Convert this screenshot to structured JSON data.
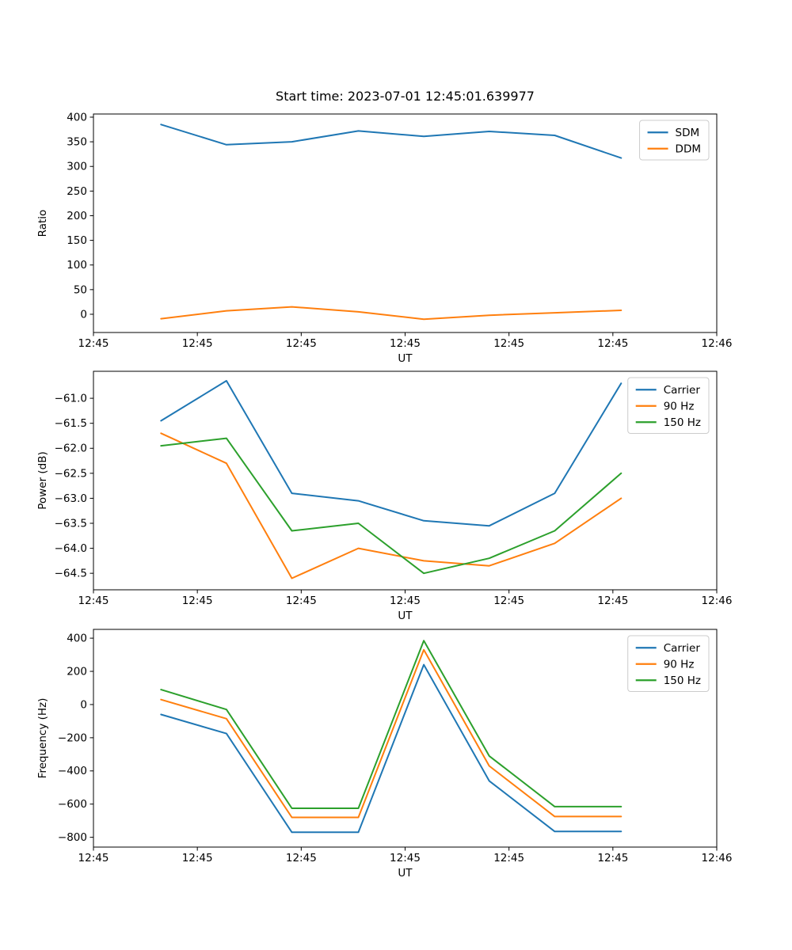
{
  "figure": {
    "title": "Start time: 2023-07-01 12:45:01.639977",
    "background": "#ffffff"
  },
  "colors": {
    "blue": "#1f77b4",
    "orange": "#ff7f0e",
    "green": "#2ca02c",
    "legend_border": "#cccccc",
    "axes_edge": "#000000"
  },
  "chart_data": [
    {
      "type": "line",
      "xlabel": "UT",
      "ylabel": "Ratio",
      "xlim_seconds": [
        0,
        60
      ],
      "xtick_seconds": [
        0,
        10,
        20,
        30,
        40,
        50,
        60
      ],
      "xtick_labels": [
        "12:45",
        "12:45",
        "12:45",
        "12:45",
        "12:45",
        "12:45",
        "12:46"
      ],
      "ylim": [
        -37,
        406.4
      ],
      "ytick_values": [
        400,
        350,
        300,
        250,
        200,
        150,
        100,
        50,
        0
      ],
      "ytick_labels": [
        "400",
        "350",
        "300",
        "250",
        "200",
        "150",
        "100",
        "50",
        "0"
      ],
      "grid": false,
      "legend_position": "upper right",
      "x_seconds": [
        6.5,
        12.8,
        19.1,
        25.5,
        31.8,
        38.1,
        44.4,
        50.8
      ],
      "series": [
        {
          "name": "SDM",
          "color": "#1f77b4",
          "values": [
            385,
            344,
            350,
            372,
            361,
            371,
            363,
            317
          ]
        },
        {
          "name": "DDM",
          "color": "#ff7f0e",
          "values": [
            -9,
            7,
            15,
            5,
            -10,
            -2,
            3,
            8
          ]
        }
      ]
    },
    {
      "type": "line",
      "xlabel": "UT",
      "ylabel": "Power (dB)",
      "xlim_seconds": [
        0,
        60
      ],
      "xtick_seconds": [
        0,
        10,
        20,
        30,
        40,
        50,
        60
      ],
      "xtick_labels": [
        "12:45",
        "12:45",
        "12:45",
        "12:45",
        "12:45",
        "12:45",
        "12:46"
      ],
      "ylim": [
        -64.83,
        -60.46
      ],
      "ytick_values": [
        -61.0,
        -61.5,
        -62.0,
        -62.5,
        -63.0,
        -63.5,
        -64.0,
        -64.5
      ],
      "ytick_labels": [
        "−61.0",
        "−61.5",
        "−62.0",
        "−62.5",
        "−63.0",
        "−63.5",
        "−64.0",
        "−64.5"
      ],
      "grid": false,
      "legend_position": "upper right",
      "x_seconds": [
        6.5,
        12.8,
        19.1,
        25.5,
        31.8,
        38.1,
        44.4,
        50.8
      ],
      "series": [
        {
          "name": "Carrier",
          "color": "#1f77b4",
          "values": [
            -61.45,
            -60.65,
            -62.9,
            -63.05,
            -63.45,
            -63.55,
            -62.9,
            -60.7
          ]
        },
        {
          "name": "90 Hz",
          "color": "#ff7f0e",
          "values": [
            -61.7,
            -62.3,
            -64.6,
            -64.0,
            -64.25,
            -64.35,
            -63.9,
            -63.0
          ]
        },
        {
          "name": "150 Hz",
          "color": "#2ca02c",
          "values": [
            -61.95,
            -61.8,
            -63.65,
            -63.5,
            -64.5,
            -64.2,
            -63.65,
            -62.5
          ]
        }
      ]
    },
    {
      "type": "line",
      "xlabel": "UT",
      "ylabel": "Frequency (Hz)",
      "xlim_seconds": [
        0,
        60
      ],
      "xtick_seconds": [
        0,
        10,
        20,
        30,
        40,
        50,
        60
      ],
      "xtick_labels": [
        "12:45",
        "12:45",
        "12:45",
        "12:45",
        "12:45",
        "12:45",
        "12:46"
      ],
      "ylim": [
        -859,
        453
      ],
      "ytick_values": [
        400,
        200,
        0,
        -200,
        -400,
        -600,
        -800
      ],
      "ytick_labels": [
        "400",
        "200",
        "0",
        "−200",
        "−400",
        "−600",
        "−800"
      ],
      "grid": false,
      "legend_position": "upper right",
      "x_seconds": [
        6.5,
        12.8,
        19.1,
        25.5,
        31.8,
        38.1,
        44.4,
        50.8
      ],
      "series": [
        {
          "name": "Carrier",
          "color": "#1f77b4",
          "values": [
            -60,
            -175,
            -770,
            -770,
            240,
            -460,
            -765,
            -765
          ]
        },
        {
          "name": "90 Hz",
          "color": "#ff7f0e",
          "values": [
            30,
            -85,
            -680,
            -680,
            330,
            -370,
            -675,
            -675
          ]
        },
        {
          "name": "150 Hz",
          "color": "#2ca02c",
          "values": [
            90,
            -30,
            -625,
            -625,
            385,
            -310,
            -615,
            -615
          ]
        }
      ]
    }
  ]
}
